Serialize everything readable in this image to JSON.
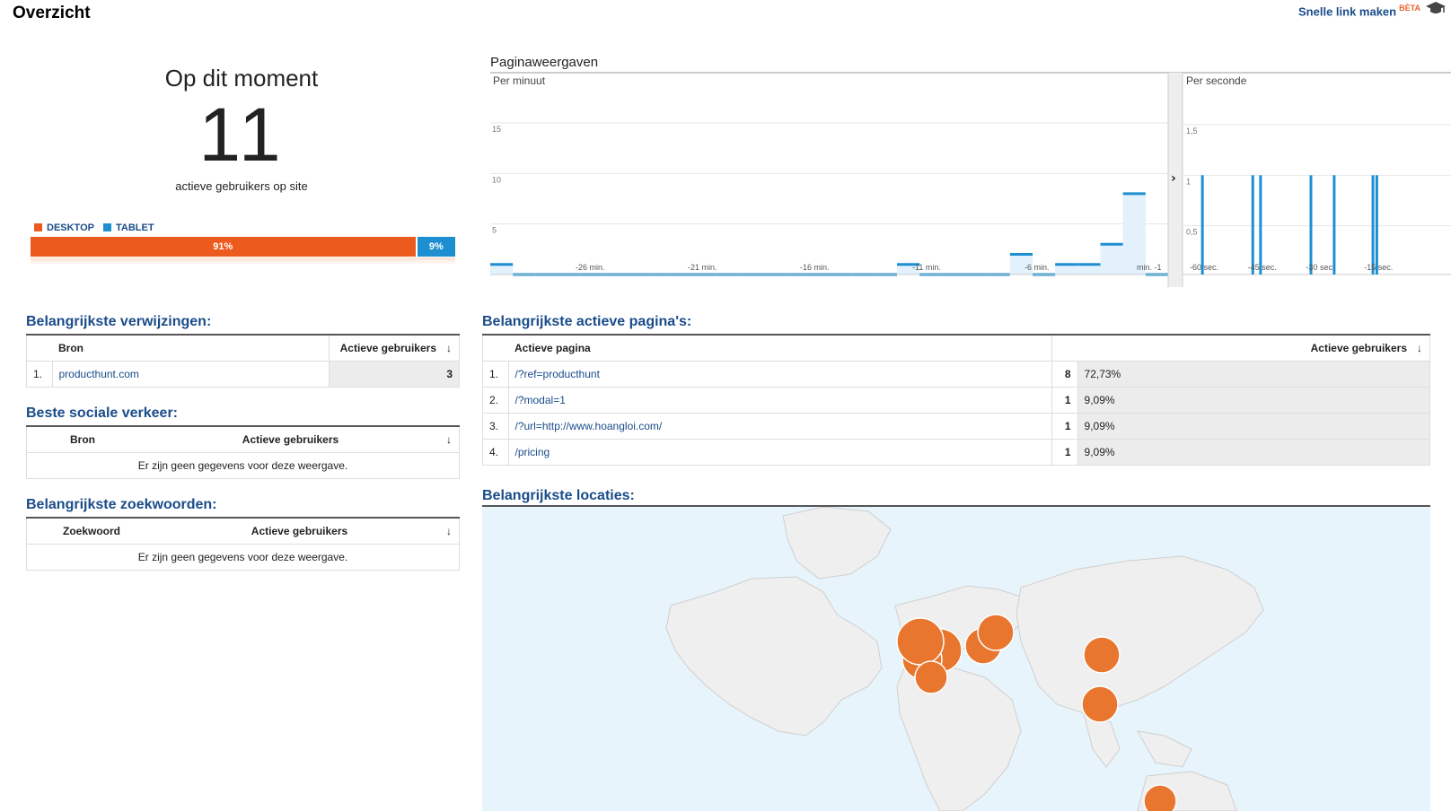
{
  "header": {
    "title": "Overzicht",
    "quick_link": "Snelle link maken",
    "beta": "BÈTA",
    "grad_icon": "graduation-cap-icon"
  },
  "now": {
    "title": "Op dit moment",
    "count": "11",
    "subtitle": "actieve gebruikers op site",
    "legend": [
      {
        "label": "DESKTOP",
        "color": "#ec5a1d"
      },
      {
        "label": "TABLET",
        "color": "#1d8fd1"
      }
    ],
    "bar": [
      {
        "label": "91%",
        "value": 91,
        "color": "#ec5a1d"
      },
      {
        "label": "9%",
        "value": 9,
        "color": "#1d8fd1"
      }
    ]
  },
  "chart_data": {
    "type": "bar",
    "title": "Paginaweergaven",
    "panels": [
      {
        "name": "Per minuut",
        "ylim": [
          0,
          15
        ],
        "yticks": [
          "15",
          "10",
          "5"
        ],
        "xticks": [
          "-26 min.",
          "-21 min.",
          "-16 min.",
          "-11 min.",
          "-6 min.",
          "min. -1"
        ],
        "values": [
          1,
          0,
          0,
          0,
          0,
          0,
          0,
          0,
          0,
          0,
          0,
          0,
          0,
          0,
          0,
          0,
          0,
          0,
          1,
          0,
          0,
          0,
          0,
          2,
          0,
          1,
          1,
          3,
          8,
          0
        ]
      },
      {
        "name": "Per seconde",
        "ylim": [
          0,
          1.5
        ],
        "yticks": [
          "1,5",
          "1",
          "0,5"
        ],
        "xticks": [
          "-60 sec.",
          "-45 sec.",
          "-30 sec.",
          "-15 sec."
        ],
        "spikes": [
          -58,
          -45,
          -43,
          -30,
          -24,
          -14,
          -13
        ]
      }
    ]
  },
  "referrals": {
    "title": "Belangrijkste verwijzingen:",
    "col_source": "Bron",
    "col_users": "Actieve gebruikers",
    "rows": [
      {
        "idx": "1.",
        "source": "producthunt.com",
        "users": "3"
      }
    ]
  },
  "social": {
    "title": "Beste sociale verkeer:",
    "col_source": "Bron",
    "col_users": "Actieve gebruikers",
    "empty": "Er zijn geen gegevens voor deze weergave."
  },
  "keywords": {
    "title": "Belangrijkste zoekwoorden:",
    "col_keyword": "Zoekwoord",
    "col_users": "Actieve gebruikers",
    "empty": "Er zijn geen gegevens voor deze weergave."
  },
  "pages": {
    "title": "Belangrijkste actieve pagina's:",
    "col_page": "Actieve pagina",
    "col_users": "Actieve gebruikers",
    "rows": [
      {
        "idx": "1.",
        "page": "/?ref=producthunt",
        "users": "8",
        "pct": "72,73%"
      },
      {
        "idx": "2.",
        "page": "/?modal=1",
        "users": "1",
        "pct": "9,09%"
      },
      {
        "idx": "3.",
        "page": "/?url=http://www.hoangloi.com/",
        "users": "1",
        "pct": "9,09%"
      },
      {
        "idx": "4.",
        "page": "/pricing",
        "users": "1",
        "pct": "9,09%"
      }
    ]
  },
  "locations": {
    "title": "Belangrijkste locaties:",
    "marker_color": "#e8762f"
  }
}
